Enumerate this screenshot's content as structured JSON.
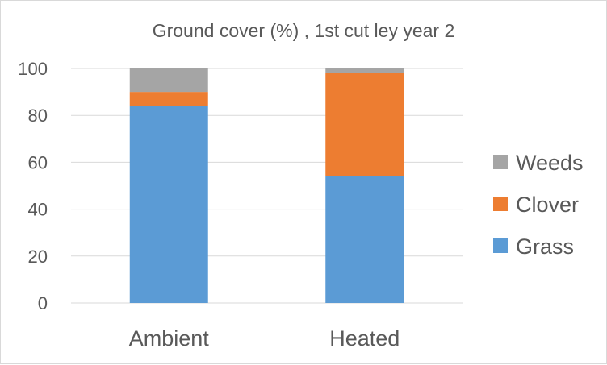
{
  "chart_data": {
    "type": "bar",
    "stacked": true,
    "title": "Ground cover (%) , 1st cut  ley year 2",
    "xlabel": "",
    "ylabel": "",
    "categories": [
      "Ambient",
      "Heated"
    ],
    "ylim": [
      0,
      100
    ],
    "yticks": [
      0,
      20,
      40,
      60,
      80,
      100
    ],
    "grid": true,
    "legend_position": "right",
    "series": [
      {
        "name": "Grass",
        "color": "#5b9bd5",
        "values": [
          84,
          54
        ]
      },
      {
        "name": "Clover",
        "color": "#ed7d31",
        "values": [
          6,
          44
        ]
      },
      {
        "name": "Weeds",
        "color": "#a5a5a5",
        "values": [
          10,
          2
        ]
      }
    ]
  }
}
